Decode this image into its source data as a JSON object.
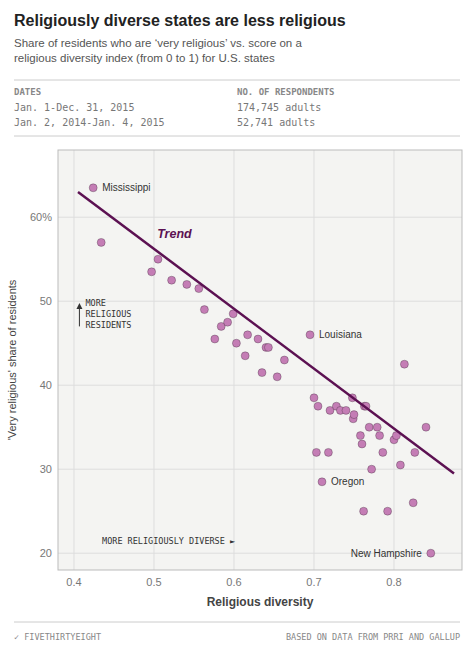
{
  "chart_data": {
    "type": "scatter",
    "title": "Religiously diverse states are less religious",
    "subtitle": "Share of residents who are ‘very religious’ vs. score on a\nreligious diversity index (from 0 to 1) for U.S. states",
    "table": {
      "columns": [
        "DATES",
        "NO. OF RESPONDENTS"
      ],
      "rows": [
        [
          "Jan. 1-Dec. 31, 2015",
          "174,745 adults"
        ],
        [
          "Jan. 2, 2014-Jan. 4, 2015",
          "52,741 adults"
        ]
      ]
    },
    "x_label": "Religious diversity",
    "y_label": "'Very religious' share of residents",
    "xlim": [
      0.38,
      0.885
    ],
    "ylim": [
      18,
      68
    ],
    "xticks": [
      0.4,
      0.5,
      0.6,
      0.7,
      0.8
    ],
    "yticks": [
      20,
      30,
      40,
      50,
      {
        "value": 60,
        "label": "60%"
      }
    ],
    "grid": true,
    "series": [
      {
        "type": "scatter",
        "color": "#c47db5",
        "x": [
          0.424,
          0.434,
          0.497,
          0.505,
          0.522,
          0.541,
          0.556,
          0.563,
          0.576,
          0.584,
          0.592,
          0.599,
          0.603,
          0.614,
          0.617,
          0.63,
          0.635,
          0.64,
          0.643,
          0.654,
          0.663,
          0.695,
          0.7,
          0.703,
          0.705,
          0.71,
          0.718,
          0.72,
          0.728,
          0.733,
          0.74,
          0.748,
          0.749,
          0.75,
          0.758,
          0.76,
          0.762,
          0.763,
          0.765,
          0.769,
          0.772,
          0.779,
          0.782,
          0.786,
          0.792,
          0.8,
          0.803,
          0.808,
          0.813,
          0.824,
          0.826,
          0.84,
          0.846
        ],
        "values": [
          63.5,
          57.0,
          53.5,
          55.0,
          52.5,
          52.0,
          51.5,
          49.0,
          45.5,
          47.0,
          47.5,
          48.5,
          45.0,
          43.5,
          46.0,
          45.5,
          41.5,
          44.5,
          44.5,
          41.0,
          43.0,
          46.0,
          38.5,
          32.0,
          37.5,
          28.5,
          32.0,
          37.0,
          37.5,
          37.0,
          37.0,
          38.5,
          36.0,
          36.5,
          34.0,
          33.0,
          25.0,
          37.5,
          37.5,
          35.0,
          30.0,
          35.0,
          34.0,
          32.0,
          25.0,
          33.5,
          34.0,
          30.5,
          42.5,
          26.0,
          32.0,
          35.0,
          20.0
        ]
      },
      {
        "name": "Trend",
        "type": "line",
        "color": "#5c1152",
        "x": [
          0.405,
          0.875
        ],
        "values": [
          63.0,
          29.5
        ]
      }
    ],
    "annotations": [
      {
        "text": "Mississippi",
        "x": 0.424,
        "y": 63.5
      },
      {
        "text": "Louisiana",
        "x": 0.695,
        "y": 46.0
      },
      {
        "text": "Oregon",
        "x": 0.71,
        "y": 28.5
      },
      {
        "text": "New Hampshire",
        "x": 0.846,
        "y": 20.0
      },
      {
        "text": "MORE\nRELIGIOUS\nRESIDENTS",
        "arrow": "up"
      },
      {
        "text": "MORE RELIGIOUSLY DIVERSE ►"
      }
    ],
    "footer": [
      "✓ FIVETHIRTYEIGHT",
      "BASED ON DATA FROM PRRI AND GALLUP"
    ]
  }
}
